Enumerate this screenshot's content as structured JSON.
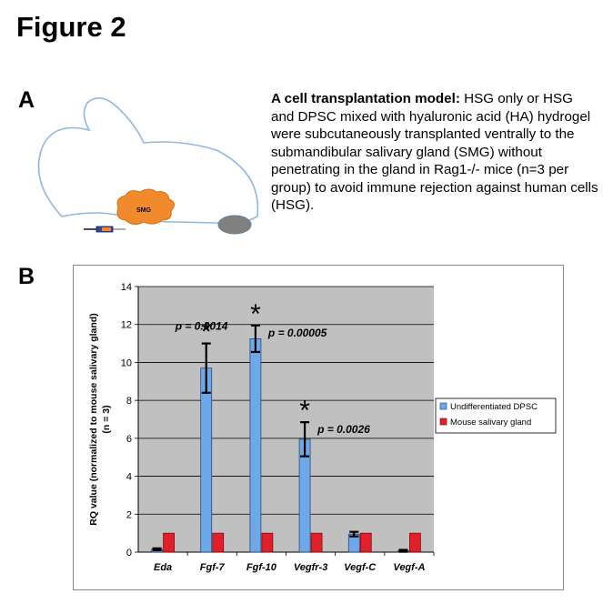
{
  "figure_title": "Figure 2",
  "panel_a": {
    "label": "A",
    "illustration_label": "SMG",
    "desc_bold": "A cell transplantation model:",
    "desc_text": " HSG only or HSG and DPSC mixed with hyaluronic acid (HA) hydrogel were subcutaneously transplanted ventrally to the submandibular salivary gland (SMG) without penetrating in the gland in Rag1-/- mice (n=3 per group) to avoid immune rejection against human cells (HSG)."
  },
  "panel_b": {
    "label": "B"
  },
  "colors": {
    "series1": "#6fa8e8",
    "series2": "#e0202a",
    "plot_bg": "#c0c0c0",
    "smg_orange": "#f08a2c",
    "node_gray": "#808080",
    "outline_blue": "#8fb8e0"
  },
  "chart_data": {
    "type": "bar",
    "categories": [
      "Eda",
      "Fgf-7",
      "Fgf-10",
      "Vegfr-3",
      "Vegf-C",
      "Vegf-A"
    ],
    "series": [
      {
        "name": "Undifferentiated DPSC",
        "values": [
          0.15,
          9.7,
          11.25,
          5.95,
          0.95,
          0.07
        ],
        "errors": [
          0.05,
          1.3,
          0.7,
          0.9,
          0.12,
          0.05
        ]
      },
      {
        "name": "Mouse salivary gland",
        "values": [
          1,
          1,
          1,
          1,
          1,
          1
        ]
      }
    ],
    "ylabel": "RQ value (normalized to mouse salivary gland)\n(n = 3)",
    "ylim": [
      0,
      14
    ],
    "yticks": [
      0,
      2,
      4,
      6,
      8,
      10,
      12,
      14
    ],
    "grid": true,
    "legend": "right",
    "annotations": [
      {
        "category": "Fgf-7",
        "text": "p = 0.0014",
        "star": "*"
      },
      {
        "category": "Fgf-10",
        "text": "p = 0.00005",
        "star": "*"
      },
      {
        "category": "Vegfr-3",
        "text": "p = 0.0026",
        "star": "*"
      }
    ]
  }
}
